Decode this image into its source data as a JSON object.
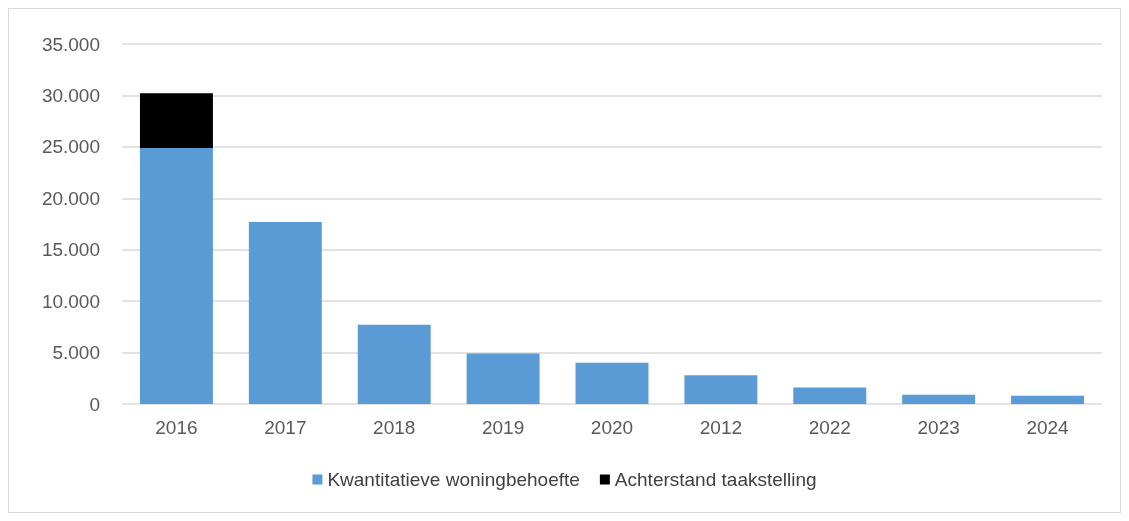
{
  "chart_data": {
    "type": "bar",
    "stacked": true,
    "categories": [
      "2016",
      "2017",
      "2018",
      "2019",
      "2020",
      "2012",
      "2022",
      "2023",
      "2024"
    ],
    "series": [
      {
        "name": "Kwantitatieve woningbehoefte",
        "color": "#5b9bd5",
        "values": [
          24900,
          17700,
          7700,
          4900,
          4000,
          2800,
          1600,
          900,
          800
        ]
      },
      {
        "name": "Achterstand taakstelling",
        "color": "#000000",
        "values": [
          5300,
          null,
          null,
          null,
          null,
          null,
          null,
          null,
          null
        ]
      }
    ],
    "ylim": [
      0,
      35000
    ],
    "yticks": [
      {
        "value": 0,
        "label": "0"
      },
      {
        "value": 5000,
        "label": "5.000"
      },
      {
        "value": 10000,
        "label": "10.000"
      },
      {
        "value": 15000,
        "label": "15.000"
      },
      {
        "value": 20000,
        "label": "20.000"
      },
      {
        "value": 25000,
        "label": "25.000"
      },
      {
        "value": 30000,
        "label": "30.000"
      },
      {
        "value": 35000,
        "label": "35.000"
      }
    ],
    "grid": "y",
    "legend": "bottom"
  }
}
